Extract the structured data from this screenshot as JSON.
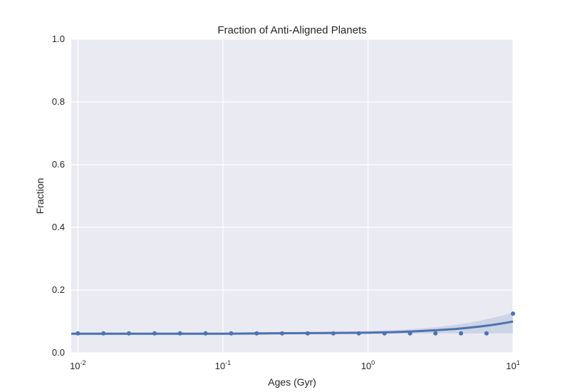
{
  "chart_data": {
    "type": "scatter",
    "title": "Fraction of Anti-Aligned Planets",
    "xlabel": "Ages (Gyr)",
    "ylabel": "Fraction",
    "xscale": "log",
    "xlim": [
      0.009,
      10
    ],
    "ylim": [
      0,
      1
    ],
    "x_ticks": [
      {
        "value": 0.01,
        "base": "10",
        "exp": "-2"
      },
      {
        "value": 0.1,
        "base": "10",
        "exp": "-1"
      },
      {
        "value": 1,
        "base": "10",
        "exp": "0"
      },
      {
        "value": 10,
        "base": "10",
        "exp": "1"
      }
    ],
    "y_ticks": [
      {
        "value": 0,
        "label": "0.0"
      },
      {
        "value": 0.2,
        "label": "0.2"
      },
      {
        "value": 0.4,
        "label": "0.4"
      },
      {
        "value": 0.6,
        "label": "0.6"
      },
      {
        "value": 0.8,
        "label": "0.8"
      },
      {
        "value": 1.0,
        "label": "1.0"
      }
    ],
    "grid": true,
    "background_color": "#eaeaf2",
    "grid_color": "#ffffff",
    "series_color": "#4c72b0",
    "points": {
      "x": [
        0.01,
        0.015,
        0.0225,
        0.0338,
        0.0506,
        0.0759,
        0.114,
        0.171,
        0.256,
        0.384,
        0.577,
        0.865,
        1.3,
        1.95,
        2.92,
        4.38,
        6.57,
        10
      ],
      "y": [
        0.062,
        0.062,
        0.062,
        0.062,
        0.062,
        0.062,
        0.062,
        0.062,
        0.062,
        0.062,
        0.062,
        0.062,
        0.062,
        0.062,
        0.062,
        0.062,
        0.062,
        0.125
      ]
    },
    "fit": {
      "x": [
        0.009,
        0.02,
        0.05,
        0.1,
        0.2,
        0.5,
        1,
        1.5,
        2,
        3,
        4,
        5,
        6,
        7,
        8,
        9,
        10
      ],
      "y": [
        0.061,
        0.061,
        0.061,
        0.061,
        0.062,
        0.063,
        0.064,
        0.066,
        0.068,
        0.072,
        0.076,
        0.08,
        0.084,
        0.088,
        0.092,
        0.096,
        0.1
      ],
      "ci_low": [
        0.057,
        0.057,
        0.057,
        0.057,
        0.058,
        0.059,
        0.06,
        0.061,
        0.061,
        0.062,
        0.062,
        0.062,
        0.062,
        0.062,
        0.062,
        0.062,
        0.062
      ],
      "ci_high": [
        0.065,
        0.065,
        0.065,
        0.065,
        0.066,
        0.067,
        0.069,
        0.072,
        0.075,
        0.082,
        0.089,
        0.096,
        0.103,
        0.11,
        0.116,
        0.122,
        0.128
      ]
    }
  }
}
